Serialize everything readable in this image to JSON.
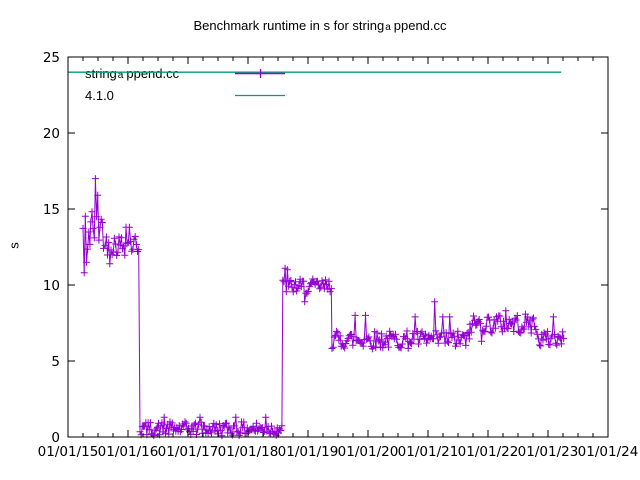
{
  "chart_data": {
    "type": "line",
    "title": {
      "pre": "Benchmark runtime in s for string",
      "sub": "a",
      "post": "ppend.cc"
    },
    "title_plain": "Benchmark runtime in s for string_append.cc",
    "ylabel": "s",
    "x_range": [
      2015,
      2024
    ],
    "y_range": [
      0,
      25
    ],
    "x_tick_years": [
      2015,
      2016,
      2017,
      2018,
      2019,
      2020,
      2021,
      2022,
      2023,
      2024
    ],
    "x_tick_labels": [
      "01/01/15",
      "01/01/16",
      "01/01/17",
      "01/01/18",
      "01/01/19",
      "01/01/20",
      "01/01/21",
      "01/01/22",
      "01/01/23",
      "01/01/24"
    ],
    "x_minor_ticks_per_year": 3,
    "y_ticks": [
      0,
      5,
      10,
      15,
      20,
      25
    ],
    "grid": false,
    "legend": {
      "position": "top-left-inside",
      "items": [
        {
          "label_pre": "string",
          "label_sub": "a",
          "label_post": "ppend.cc",
          "color": "#9400D3",
          "style": "linespoints",
          "marker": "plus"
        },
        {
          "label_pre": "4.1.0",
          "label_sub": "",
          "label_post": "",
          "color": "#009E73",
          "style": "line",
          "marker": "none"
        }
      ]
    },
    "series": [
      {
        "name": "string_append.cc",
        "color": "#9400D3",
        "marker": "plus",
        "points_per_year": 52,
        "band_segments": [
          {
            "t0": 2015.25,
            "t1": 2015.38,
            "lo": 11.8,
            "hi": 15.0
          },
          {
            "t0": 2015.38,
            "t1": 2015.62,
            "lo": 12.4,
            "hi": 15.2
          },
          {
            "t0": 2015.62,
            "t1": 2016.2,
            "lo": 11.9,
            "hi": 13.4
          },
          {
            "t0": 2016.2,
            "t1": 2018.58,
            "lo": 0.08,
            "hi": 1.0
          },
          {
            "t0": 2018.58,
            "t1": 2019.4,
            "lo": 9.4,
            "hi": 10.4
          },
          {
            "t0": 2019.4,
            "t1": 2021.7,
            "lo": 5.8,
            "hi": 7.0
          },
          {
            "t0": 2021.7,
            "t1": 2022.82,
            "lo": 6.8,
            "hi": 8.1
          },
          {
            "t0": 2022.82,
            "t1": 2023.28,
            "lo": 5.9,
            "hi": 7.0
          }
        ],
        "outliers": [
          {
            "t": 2015.27,
            "v": 10.8
          },
          {
            "t": 2015.31,
            "v": 11.5
          },
          {
            "t": 2015.46,
            "v": 17.0
          },
          {
            "t": 2015.5,
            "v": 15.9
          },
          {
            "t": 2015.7,
            "v": 11.4
          },
          {
            "t": 2015.97,
            "v": 13.8
          },
          {
            "t": 2016.03,
            "v": 13.8
          },
          {
            "t": 2016.6,
            "v": 1.3
          },
          {
            "t": 2017.2,
            "v": 1.3
          },
          {
            "t": 2017.8,
            "v": 1.3
          },
          {
            "t": 2018.3,
            "v": 1.3
          },
          {
            "t": 2018.62,
            "v": 11.1
          },
          {
            "t": 2018.66,
            "v": 11.0
          },
          {
            "t": 2018.95,
            "v": 8.9
          },
          {
            "t": 2019.78,
            "v": 8.0
          },
          {
            "t": 2019.95,
            "v": 8.0
          },
          {
            "t": 2020.78,
            "v": 7.9
          },
          {
            "t": 2021.12,
            "v": 8.9
          },
          {
            "t": 2021.25,
            "v": 7.9
          },
          {
            "t": 2021.37,
            "v": 7.9
          },
          {
            "t": 2021.9,
            "v": 6.3
          },
          {
            "t": 2022.3,
            "v": 8.3
          },
          {
            "t": 2023.08,
            "v": 7.9
          }
        ]
      },
      {
        "name": "4.1.0",
        "color": "#009E73",
        "constant_value": 24,
        "start": 2015.0,
        "end": 2023.22
      }
    ],
    "colors": {
      "series1": "#9400D3",
      "series2": "#009E73",
      "axis": "#000000",
      "background": "#FFFFFF"
    }
  }
}
